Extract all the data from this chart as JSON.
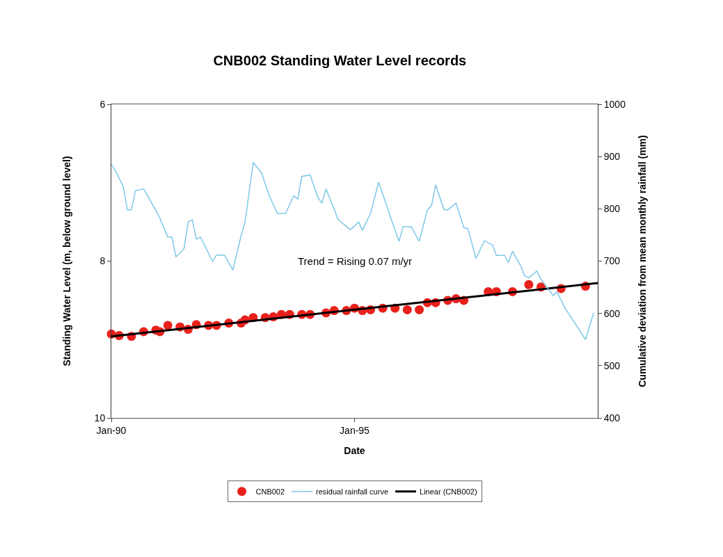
{
  "chart_data": {
    "type": "scatter",
    "title": "CNB002 Standing Water Level records",
    "xlabel": "Date",
    "ylabel": "Standing Water Level (m, below ground level)",
    "y2label": "Cumulative deviation from mean monthly rainfall (mm)",
    "xlim": [
      "1990-01",
      "2000-01"
    ],
    "xticks": [
      {
        "value": "1990-01",
        "label": "Jan-90"
      },
      {
        "value": "1995-01",
        "label": "Jan-95"
      }
    ],
    "ylim": [
      10,
      6
    ],
    "yticks": [
      6,
      8,
      10
    ],
    "y2lim": [
      400,
      1000
    ],
    "y2ticks": [
      400,
      500,
      600,
      700,
      800,
      900,
      1000
    ],
    "grid": false,
    "legend": "bottom",
    "annotations": [
      "Trend = Rising 0.07 m/yr"
    ],
    "series": [
      {
        "name": "CNB002",
        "type": "scatter",
        "marker": "circle",
        "color": "#e8211c",
        "x": [
          "1990-01",
          "1990-03",
          "1990-06",
          "1990-09",
          "1990-12",
          "1991-01",
          "1991-03",
          "1991-06",
          "1991-08",
          "1991-10",
          "1992-01",
          "1992-03",
          "1992-06",
          "1992-09",
          "1992-10",
          "1992-12",
          "1993-03",
          "1993-05",
          "1993-07",
          "1993-09",
          "1993-12",
          "1994-02",
          "1994-06",
          "1994-08",
          "1994-11",
          "1995-01",
          "1995-03",
          "1995-05",
          "1995-08",
          "1995-11",
          "1996-02",
          "1996-05",
          "1996-07",
          "1996-09",
          "1996-12",
          "1997-02",
          "1997-04",
          "1997-10",
          "1997-12",
          "1998-04",
          "1998-08",
          "1998-11",
          "1999-04",
          "1999-10"
        ],
        "values": [
          8.93,
          8.95,
          8.96,
          8.9,
          8.88,
          8.9,
          8.82,
          8.84,
          8.87,
          8.81,
          8.82,
          8.82,
          8.79,
          8.79,
          8.75,
          8.72,
          8.72,
          8.71,
          8.68,
          8.68,
          8.68,
          8.68,
          8.66,
          8.63,
          8.63,
          8.6,
          8.63,
          8.62,
          8.6,
          8.6,
          8.62,
          8.62,
          8.53,
          8.53,
          8.5,
          8.48,
          8.5,
          8.39,
          8.39,
          8.39,
          8.3,
          8.33,
          8.35,
          8.32
        ]
      },
      {
        "name": "residual rainfall curve",
        "type": "line",
        "axis": "y2",
        "marker": "none",
        "color": "#7ec8e8",
        "x": [
          "1990-01",
          "1990-02",
          "1990-04",
          "1990-05",
          "1990-06",
          "1990-07",
          "1990-09",
          "1990-11",
          "1991-01",
          "1991-03",
          "1991-04",
          "1991-05",
          "1991-07",
          "1991-08",
          "1991-09",
          "1991-10",
          "1991-11",
          "1992-02",
          "1992-03",
          "1992-05",
          "1992-07",
          "1992-09",
          "1992-10",
          "1992-12",
          "1993-02",
          "1993-04",
          "1993-06",
          "1993-08",
          "1993-10",
          "1993-11",
          "1993-12",
          "1994-02",
          "1994-04",
          "1994-05",
          "1994-06",
          "1994-09",
          "1994-12",
          "1995-02",
          "1995-03",
          "1995-05",
          "1995-07",
          "1995-10",
          "1995-12",
          "1996-01",
          "1996-03",
          "1996-05",
          "1996-07",
          "1996-08",
          "1996-09",
          "1996-11",
          "1996-12",
          "1997-02",
          "1997-04",
          "1997-05",
          "1997-07",
          "1997-09",
          "1997-11",
          "1997-12",
          "1998-02",
          "1998-03",
          "1998-04",
          "1998-06",
          "1998-07",
          "1998-08",
          "1998-10",
          "1998-11",
          "1999-02",
          "1999-03",
          "1999-05",
          "1999-08",
          "1999-10",
          "1999-12"
        ],
        "values": [
          885,
          873,
          842,
          798,
          798,
          835,
          838,
          811,
          782,
          746,
          746,
          708,
          724,
          775,
          779,
          742,
          746,
          699,
          712,
          711,
          683,
          748,
          775,
          889,
          869,
          825,
          791,
          791,
          825,
          819,
          862,
          865,
          822,
          811,
          838,
          779,
          760,
          775,
          759,
          791,
          851,
          782,
          738,
          766,
          766,
          738,
          798,
          806,
          846,
          799,
          798,
          811,
          764,
          762,
          705,
          739,
          731,
          711,
          711,
          697,
          719,
          691,
          672,
          668,
          681,
          665,
          634,
          641,
          610,
          574,
          550,
          601
        ]
      },
      {
        "name": "Linear (CNB002)",
        "type": "line",
        "marker": "none",
        "color": "#000000",
        "x": [
          "1990-01",
          "2000-01"
        ],
        "values": [
          8.96,
          8.28
        ]
      }
    ]
  }
}
